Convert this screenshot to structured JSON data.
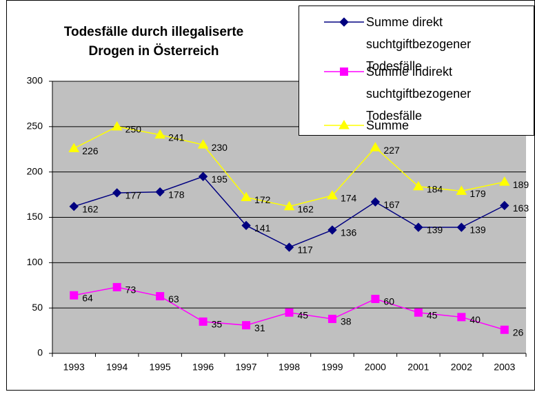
{
  "chart_data": {
    "type": "line",
    "title_lines": [
      "Todesfälle durch illegaliserte",
      "Drogen in Österreich"
    ],
    "categories": [
      "1993",
      "1994",
      "1995",
      "1996",
      "1997",
      "1998",
      "1999",
      "2000",
      "2001",
      "2002",
      "2003"
    ],
    "series": [
      {
        "name": "Summe direkt suchtgiftbezogener Todesfälle",
        "color": "#000080",
        "marker": "diamond",
        "values": [
          162,
          177,
          178,
          195,
          141,
          117,
          136,
          167,
          139,
          139,
          163
        ]
      },
      {
        "name": "Summe indirekt suchtgiftbezogener Todesfälle",
        "color": "#ff00ff",
        "marker": "square",
        "values": [
          64,
          73,
          63,
          35,
          31,
          45,
          38,
          60,
          45,
          40,
          26
        ]
      },
      {
        "name": "Summe",
        "color": "#ffff00",
        "marker": "triangle",
        "values": [
          226,
          250,
          241,
          230,
          172,
          162,
          174,
          227,
          184,
          179,
          189
        ]
      }
    ],
    "ylim": [
      0,
      300
    ],
    "yticks": [
      0,
      50,
      100,
      150,
      200,
      250,
      300
    ],
    "grid": true,
    "legend": "upper right",
    "data_labels": true
  }
}
